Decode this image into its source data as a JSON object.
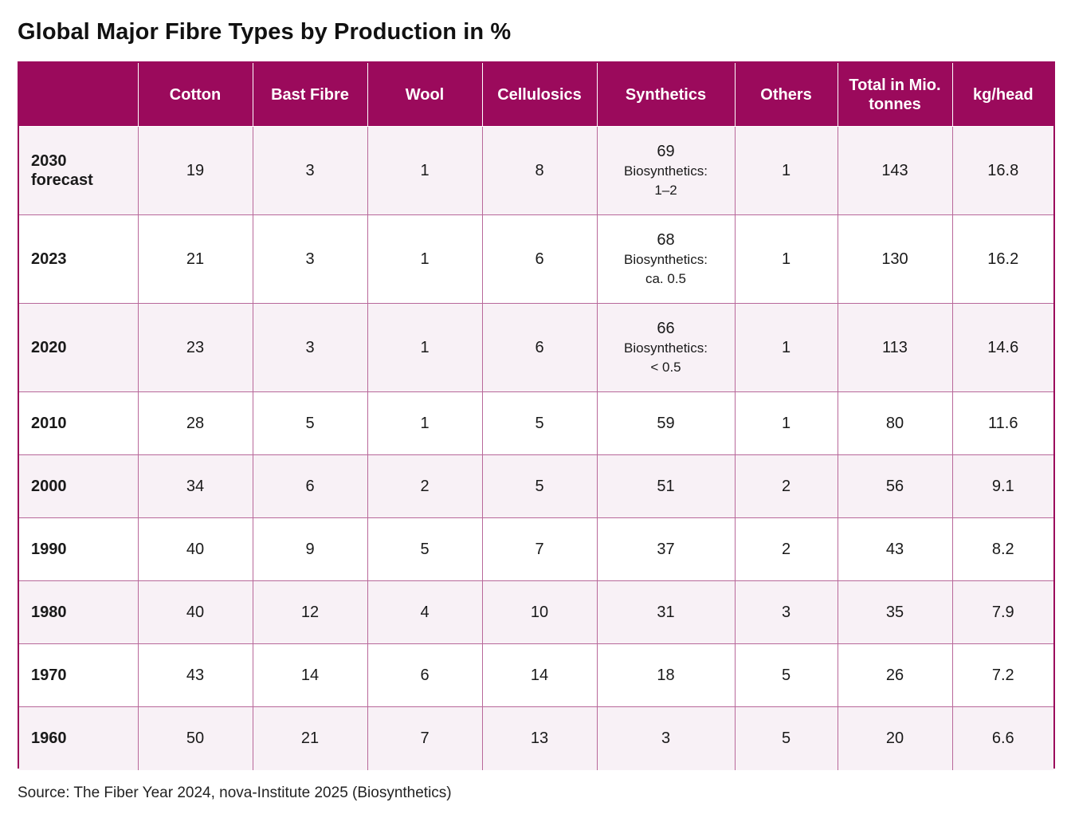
{
  "title": "Global Major Fibre Types by Production in %",
  "source": "Source: The Fiber Year 2024, nova-Institute 2025 (Biosynthetics)",
  "colors": {
    "header_bg": "#9b0a5c",
    "row_shade": "#f8f1f6",
    "border": "#b8689a"
  },
  "chart_data": {
    "type": "table",
    "title": "Global Major Fibre Types by Production in %",
    "columns": [
      "",
      "Cotton",
      "Bast Fibre",
      "Wool",
      "Cellulosics",
      "Synthetics",
      "Others",
      "Total in Mio. tonnes",
      "kg/head"
    ],
    "rows": [
      {
        "year": "2030 forecast",
        "cotton": "19",
        "bast": "3",
        "wool": "1",
        "cellulosics": "8",
        "synthetics": "69",
        "synthetics_note_label": "Biosynthetics:",
        "synthetics_note_value": "1–2",
        "others": "1",
        "total": "143",
        "kg_head": "16.8",
        "shade": true
      },
      {
        "year": "2023",
        "cotton": "21",
        "bast": "3",
        "wool": "1",
        "cellulosics": "6",
        "synthetics": "68",
        "synthetics_note_label": "Biosynthetics:",
        "synthetics_note_value": "ca. 0.5",
        "others": "1",
        "total": "130",
        "kg_head": "16.2",
        "shade": false
      },
      {
        "year": "2020",
        "cotton": "23",
        "bast": "3",
        "wool": "1",
        "cellulosics": "6",
        "synthetics": "66",
        "synthetics_note_label": "Biosynthetics:",
        "synthetics_note_value": "< 0.5",
        "others": "1",
        "total": "113",
        "kg_head": "14.6",
        "shade": true
      },
      {
        "year": "2010",
        "cotton": "28",
        "bast": "5",
        "wool": "1",
        "cellulosics": "5",
        "synthetics": "59",
        "others": "1",
        "total": "80",
        "kg_head": "11.6",
        "shade": false
      },
      {
        "year": "2000",
        "cotton": "34",
        "bast": "6",
        "wool": "2",
        "cellulosics": "5",
        "synthetics": "51",
        "others": "2",
        "total": "56",
        "kg_head": "9.1",
        "shade": true
      },
      {
        "year": "1990",
        "cotton": "40",
        "bast": "9",
        "wool": "5",
        "cellulosics": "7",
        "synthetics": "37",
        "others": "2",
        "total": "43",
        "kg_head": "8.2",
        "shade": false
      },
      {
        "year": "1980",
        "cotton": "40",
        "bast": "12",
        "wool": "4",
        "cellulosics": "10",
        "synthetics": "31",
        "others": "3",
        "total": "35",
        "kg_head": "7.9",
        "shade": true
      },
      {
        "year": "1970",
        "cotton": "43",
        "bast": "14",
        "wool": "6",
        "cellulosics": "14",
        "synthetics": "18",
        "others": "5",
        "total": "26",
        "kg_head": "7.2",
        "shade": false
      },
      {
        "year": "1960",
        "cotton": "50",
        "bast": "21",
        "wool": "7",
        "cellulosics": "13",
        "synthetics": "3",
        "others": "5",
        "total": "20",
        "kg_head": "6.6",
        "shade": true
      }
    ]
  }
}
